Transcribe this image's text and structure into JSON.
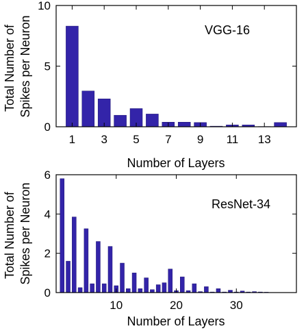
{
  "chart_data": [
    {
      "type": "bar",
      "annotation": "VGG-16",
      "xlabel": "Number of Layers",
      "ylabel": "Total Number of Spikes per Neuron",
      "x": [
        1,
        2,
        3,
        4,
        5,
        6,
        7,
        8,
        9,
        10,
        11,
        12,
        13,
        14
      ],
      "values": [
        8.3,
        2.95,
        2.3,
        0.95,
        1.5,
        1.05,
        0.38,
        0.38,
        0.35,
        0.05,
        0.15,
        0.15,
        0.02,
        0.35
      ],
      "xlim": [
        0,
        15
      ],
      "ylim": [
        0,
        10
      ],
      "xticks": [
        1,
        3,
        5,
        7,
        9,
        11,
        13
      ],
      "yticks": [
        0,
        5,
        10
      ],
      "bar_color": "#3324a9",
      "grid": false
    },
    {
      "type": "bar",
      "annotation": "ResNet-34",
      "xlabel": "Number of Layers",
      "ylabel": "Total Number of Spikes per Neuron",
      "x": [
        1,
        2,
        3,
        4,
        5,
        6,
        7,
        8,
        9,
        10,
        11,
        12,
        13,
        14,
        15,
        16,
        17,
        18,
        19,
        20,
        21,
        22,
        23,
        24,
        25,
        26,
        27,
        28,
        29,
        30,
        31,
        32,
        33,
        34,
        35
      ],
      "values": [
        5.8,
        1.6,
        3.85,
        0.25,
        3.25,
        0.45,
        2.6,
        0.45,
        2.35,
        0.35,
        1.5,
        0.2,
        1.0,
        0.2,
        0.75,
        0.15,
        0.4,
        0.5,
        1.2,
        0.1,
        0.8,
        0.1,
        0.45,
        0.05,
        0.3,
        0.03,
        0.2,
        0.03,
        0.12,
        0.03,
        0.08,
        0.03,
        0.05,
        0.03,
        0.02
      ],
      "xlim": [
        0,
        40
      ],
      "ylim": [
        0,
        6
      ],
      "xticks": [
        10,
        20,
        30
      ],
      "yticks": [
        0,
        2,
        4,
        6
      ],
      "bar_color": "#3324a9",
      "grid": false
    }
  ]
}
